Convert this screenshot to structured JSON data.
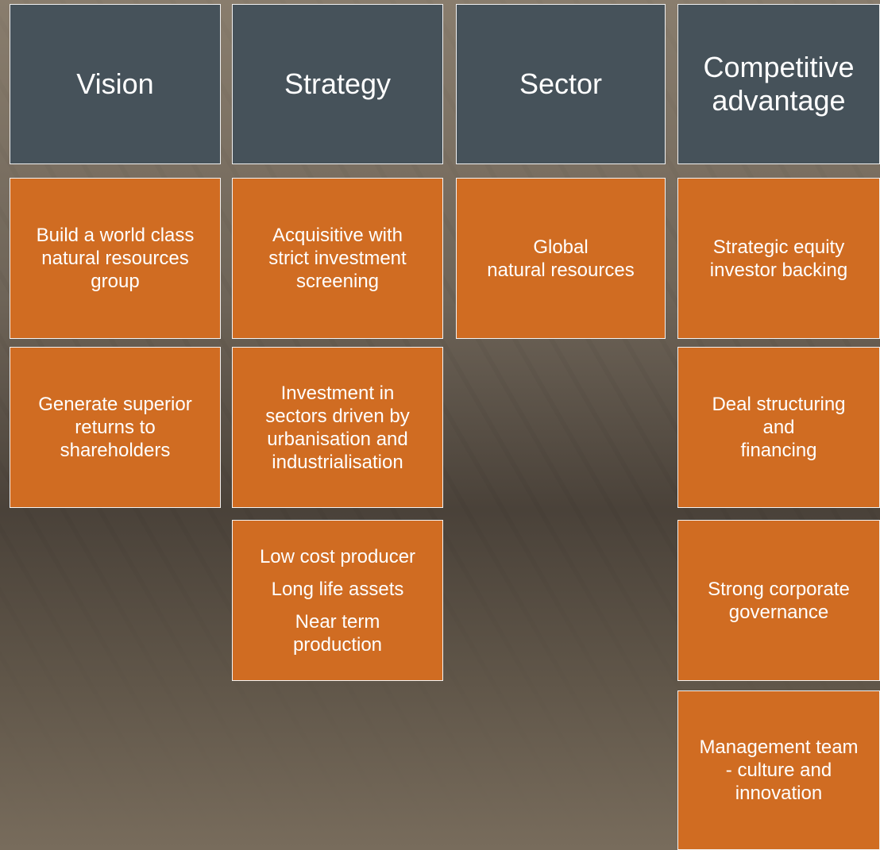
{
  "columns": [
    {
      "header": [
        "Vision"
      ],
      "cells": [
        [
          [
            "Build a world class",
            "natural resources",
            "group"
          ]
        ],
        [
          [
            "Generate superior",
            "returns to",
            "shareholders"
          ]
        ]
      ]
    },
    {
      "header": [
        "Strategy"
      ],
      "cells": [
        [
          [
            "Acquisitive with",
            "strict investment",
            "screening"
          ]
        ],
        [
          [
            "Investment in",
            "sectors driven by",
            "urbanisation and",
            "industrialisation"
          ]
        ],
        [
          [
            "Low cost producer"
          ],
          [
            "Long life assets"
          ],
          [
            "Near term",
            "production"
          ]
        ]
      ]
    },
    {
      "header": [
        "Sector"
      ],
      "cells": [
        [
          [
            "Global",
            "natural resources"
          ]
        ]
      ]
    },
    {
      "header": [
        "Competitive",
        "advantage"
      ],
      "cells": [
        [
          [
            "Strategic equity",
            "investor backing"
          ]
        ],
        [
          [
            "Deal structuring",
            "and",
            "financing"
          ]
        ],
        [
          [
            "Strong corporate",
            "governance"
          ]
        ],
        [
          [
            "Management team",
            "- culture and",
            "innovation"
          ]
        ]
      ]
    }
  ]
}
